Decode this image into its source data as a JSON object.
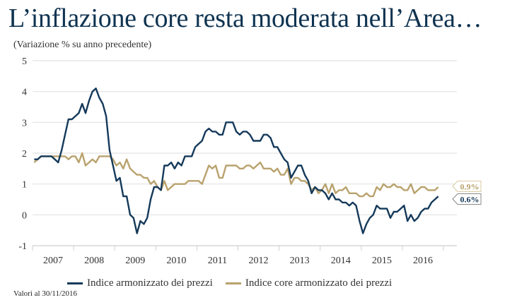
{
  "title": "L’inflazione core resta moderata nell’Area…",
  "subtitle": "(Variazione % su anno precedente)",
  "note": "Valori al 30/11/2016",
  "colors": {
    "hicp": "#14395a",
    "core": "#b9a26d",
    "title": "#0f3350",
    "grid": "#e2e2e2"
  },
  "chart_data": {
    "type": "line",
    "title": "",
    "xlabel": "",
    "ylabel": "",
    "ylim": [
      -1,
      5
    ],
    "yticks": [
      "5",
      "4",
      "3",
      "2",
      "1",
      "0",
      "-1"
    ],
    "xticks": [
      "2007",
      "2008",
      "2009",
      "2010",
      "2011",
      "2012",
      "2013",
      "2014",
      "2015",
      "2016"
    ],
    "x_start": "2007-01",
    "x_end": "2016-11",
    "frequency": "monthly",
    "grid": true,
    "legend": "bottom",
    "series": [
      {
        "name": "Indice armonizzato dei prezzi",
        "color": "#14395a",
        "values": [
          1.8,
          1.8,
          1.9,
          1.9,
          1.9,
          1.9,
          1.8,
          1.7,
          2.1,
          2.6,
          3.1,
          3.1,
          3.2,
          3.3,
          3.6,
          3.3,
          3.7,
          4.0,
          4.1,
          3.8,
          3.6,
          3.2,
          2.1,
          1.6,
          1.1,
          1.2,
          0.6,
          0.6,
          0.0,
          -0.1,
          -0.6,
          -0.2,
          -0.3,
          -0.1,
          0.5,
          0.9,
          0.9,
          0.8,
          1.6,
          1.6,
          1.7,
          1.5,
          1.7,
          1.6,
          1.9,
          1.9,
          1.9,
          2.2,
          2.3,
          2.4,
          2.7,
          2.8,
          2.7,
          2.7,
          2.6,
          2.6,
          3.0,
          3.0,
          3.0,
          2.7,
          2.6,
          2.7,
          2.7,
          2.6,
          2.4,
          2.4,
          2.4,
          2.6,
          2.6,
          2.5,
          2.2,
          2.2,
          2.0,
          1.8,
          1.7,
          1.2,
          1.4,
          1.6,
          1.6,
          1.3,
          1.1,
          0.7,
          0.9,
          0.8,
          0.8,
          0.7,
          0.5,
          0.7,
          0.5,
          0.5,
          0.4,
          0.4,
          0.3,
          0.4,
          0.3,
          -0.2,
          -0.6,
          -0.3,
          -0.1,
          0.0,
          0.3,
          0.2,
          0.2,
          0.2,
          -0.1,
          0.1,
          0.1,
          0.2,
          0.3,
          -0.2,
          0.0,
          -0.2,
          -0.1,
          0.1,
          0.2,
          0.2,
          0.4,
          0.5,
          0.6
        ],
        "last_label": "0.6%"
      },
      {
        "name": "Indice core armonizzato dei prezzi",
        "color": "#b9a26d",
        "values": [
          1.7,
          1.8,
          1.9,
          1.9,
          1.9,
          1.9,
          1.9,
          1.9,
          1.9,
          1.9,
          1.8,
          1.9,
          1.9,
          1.7,
          2.0,
          1.6,
          1.7,
          1.8,
          1.7,
          1.9,
          1.9,
          1.9,
          1.9,
          1.8,
          1.6,
          1.7,
          1.5,
          1.8,
          1.5,
          1.4,
          1.3,
          1.3,
          1.2,
          1.2,
          1.0,
          1.1,
          0.9,
          0.8,
          1.1,
          0.8,
          0.9,
          1.0,
          1.0,
          1.0,
          1.0,
          1.1,
          1.1,
          1.1,
          1.1,
          1.0,
          1.3,
          1.6,
          1.5,
          1.6,
          1.2,
          1.2,
          1.6,
          1.6,
          1.6,
          1.6,
          1.5,
          1.5,
          1.6,
          1.6,
          1.5,
          1.6,
          1.7,
          1.5,
          1.5,
          1.5,
          1.4,
          1.5,
          1.3,
          1.3,
          1.5,
          1.0,
          1.2,
          1.2,
          1.1,
          1.1,
          1.0,
          0.8,
          0.9,
          0.7,
          0.8,
          1.0,
          0.7,
          1.0,
          0.7,
          0.8,
          0.8,
          0.9,
          0.7,
          0.7,
          0.7,
          0.6,
          0.6,
          0.7,
          0.6,
          0.6,
          0.9,
          0.8,
          1.0,
          0.9,
          0.9,
          1.0,
          0.9,
          0.9,
          0.8,
          0.8,
          1.0,
          0.7,
          0.8,
          0.9,
          0.9,
          0.8,
          0.8,
          0.8,
          0.9
        ],
        "last_label": "0.9%"
      }
    ]
  }
}
